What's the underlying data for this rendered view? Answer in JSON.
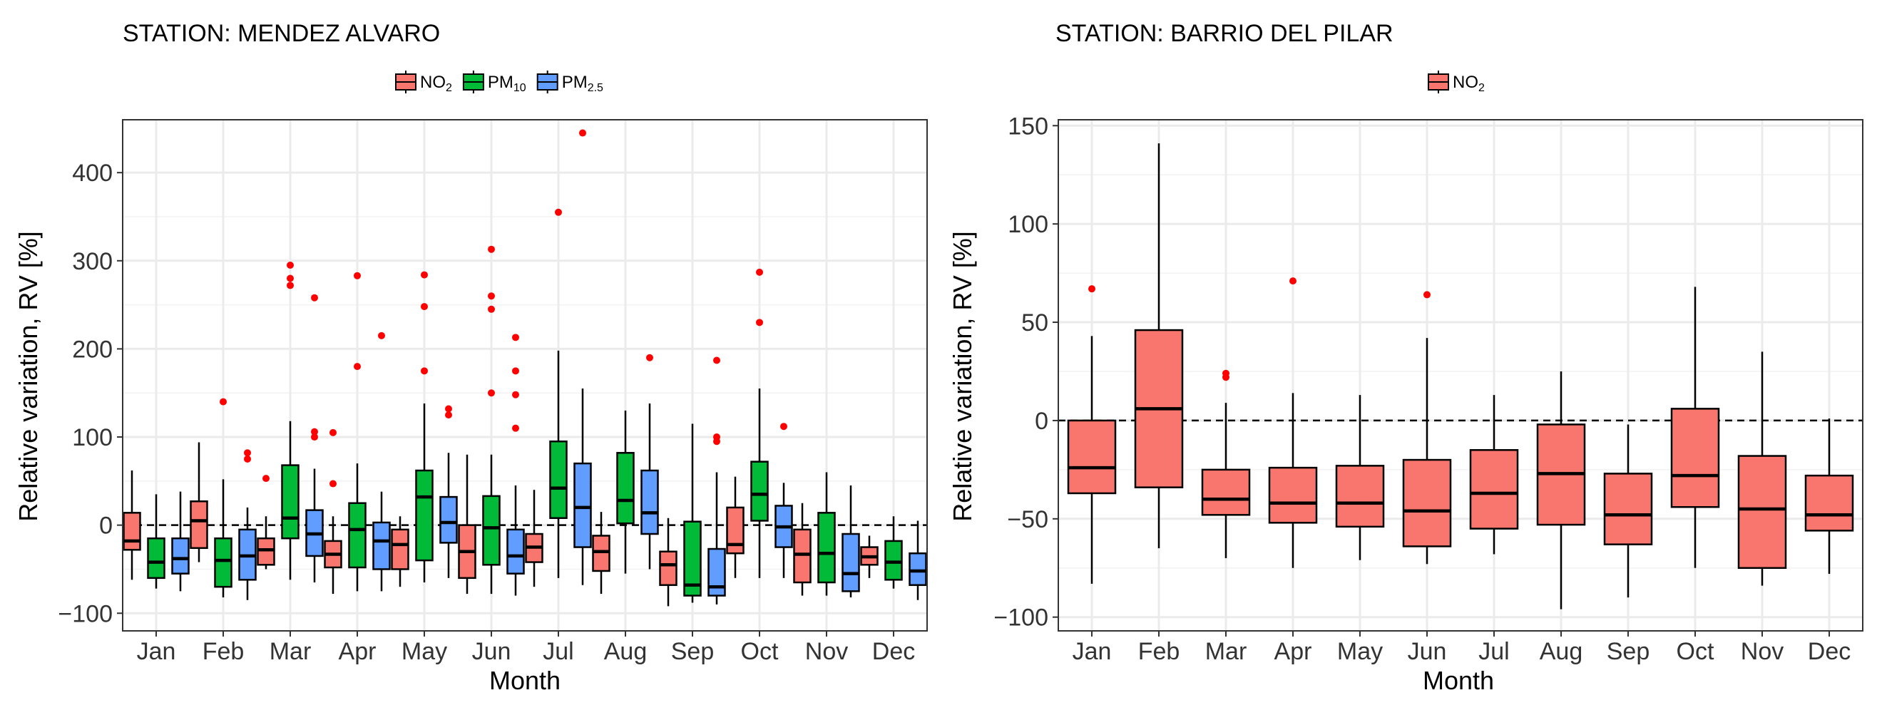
{
  "chart_data": [
    {
      "type": "boxplot",
      "title": "STATION: MENDEZ ALVARO",
      "xlabel": "Month",
      "ylabel": "Relative variation, RV [%]",
      "ylim": [
        -120,
        460
      ],
      "yticks": [
        -100,
        0,
        100,
        200,
        300,
        400
      ],
      "ytick_labels": [
        "−100",
        "0",
        "100",
        "200",
        "300",
        "400"
      ],
      "reference_line": 0,
      "categories": [
        "Jan",
        "Feb",
        "Mar",
        "Apr",
        "May",
        "Jun",
        "Jul",
        "Aug",
        "Sep",
        "Oct",
        "Nov",
        "Dec"
      ],
      "legend": {
        "position": "top",
        "entries": [
          {
            "base": "NO",
            "sub": "2"
          },
          {
            "base": "PM",
            "sub": "10"
          },
          {
            "base": "PM",
            "sub": "2.5"
          }
        ]
      },
      "series": [
        {
          "name": "NO2",
          "color": "#F8766D",
          "boxes": [
            {
              "min": -62,
              "q1": -28,
              "median": -18,
              "q3": 14,
              "max": 62,
              "outliers": []
            },
            {
              "min": -42,
              "q1": -26,
              "median": 5,
              "q3": 27,
              "max": 94,
              "outliers": []
            },
            {
              "min": -50,
              "q1": -45,
              "median": -28,
              "q3": -15,
              "max": 10,
              "outliers": [
                53
              ]
            },
            {
              "min": -78,
              "q1": -48,
              "median": -33,
              "q3": -18,
              "max": 10,
              "outliers": [
                47,
                105
              ]
            },
            {
              "min": -70,
              "q1": -50,
              "median": -22,
              "q3": -5,
              "max": 10,
              "outliers": []
            },
            {
              "min": -78,
              "q1": -60,
              "median": -30,
              "q3": 0,
              "max": 80,
              "outliers": []
            },
            {
              "min": -70,
              "q1": -42,
              "median": -25,
              "q3": -10,
              "max": 40,
              "outliers": []
            },
            {
              "min": -78,
              "q1": -52,
              "median": -30,
              "q3": -12,
              "max": 15,
              "outliers": []
            },
            {
              "min": -92,
              "q1": -68,
              "median": -45,
              "q3": -30,
              "max": 8,
              "outliers": []
            },
            {
              "min": -60,
              "q1": -32,
              "median": -22,
              "q3": 20,
              "max": 55,
              "outliers": []
            },
            {
              "min": -80,
              "q1": -65,
              "median": -33,
              "q3": -5,
              "max": 25,
              "outliers": []
            },
            {
              "min": -60,
              "q1": -45,
              "median": -36,
              "q3": -25,
              "max": -12,
              "outliers": []
            }
          ]
        },
        {
          "name": "PM10",
          "color": "#00BA38",
          "boxes": [
            {
              "min": -72,
              "q1": -60,
              "median": -42,
              "q3": -15,
              "max": 35,
              "outliers": []
            },
            {
              "min": -82,
              "q1": -70,
              "median": -40,
              "q3": -15,
              "max": 52,
              "outliers": [
                140
              ]
            },
            {
              "min": -62,
              "q1": -15,
              "median": 8,
              "q3": 68,
              "max": 118,
              "outliers": [
                272,
                280,
                295
              ]
            },
            {
              "min": -75,
              "q1": -48,
              "median": -5,
              "q3": 25,
              "max": 70,
              "outliers": [
                180,
                283
              ]
            },
            {
              "min": -65,
              "q1": -40,
              "median": 32,
              "q3": 62,
              "max": 138,
              "outliers": [
                175,
                248,
                284
              ]
            },
            {
              "min": -78,
              "q1": -45,
              "median": -3,
              "q3": 33,
              "max": 80,
              "outliers": [
                150,
                245,
                260,
                313
              ]
            },
            {
              "min": -60,
              "q1": 8,
              "median": 42,
              "q3": 95,
              "max": 198,
              "outliers": [
                355
              ]
            },
            {
              "min": -55,
              "q1": 2,
              "median": 28,
              "q3": 82,
              "max": 130,
              "outliers": []
            },
            {
              "min": -88,
              "q1": -80,
              "median": -68,
              "q3": 4,
              "max": 115,
              "outliers": []
            },
            {
              "min": -60,
              "q1": 5,
              "median": 35,
              "q3": 72,
              "max": 155,
              "outliers": [
                230,
                287
              ]
            },
            {
              "min": -80,
              "q1": -65,
              "median": -32,
              "q3": 14,
              "max": 60,
              "outliers": []
            },
            {
              "min": -72,
              "q1": -62,
              "median": -42,
              "q3": -18,
              "max": 10,
              "outliers": []
            }
          ]
        },
        {
          "name": "PM2.5",
          "color": "#619CFF",
          "boxes": [
            {
              "min": -75,
              "q1": -55,
              "median": -38,
              "q3": -15,
              "max": 38,
              "outliers": []
            },
            {
              "min": -85,
              "q1": -62,
              "median": -35,
              "q3": -5,
              "max": 20,
              "outliers": [
                75,
                82
              ]
            },
            {
              "min": -65,
              "q1": -35,
              "median": -10,
              "q3": 17,
              "max": 64,
              "outliers": [
                100,
                106,
                258
              ]
            },
            {
              "min": -75,
              "q1": -50,
              "median": -18,
              "q3": 3,
              "max": 38,
              "outliers": [
                215
              ]
            },
            {
              "min": -60,
              "q1": -20,
              "median": 3,
              "q3": 32,
              "max": 82,
              "outliers": [
                125,
                132
              ]
            },
            {
              "min": -80,
              "q1": -55,
              "median": -35,
              "q3": -5,
              "max": 45,
              "outliers": [
                110,
                148,
                175,
                213
              ]
            },
            {
              "min": -68,
              "q1": -25,
              "median": 20,
              "q3": 70,
              "max": 155,
              "outliers": [
                445
              ]
            },
            {
              "min": -50,
              "q1": -10,
              "median": 14,
              "q3": 62,
              "max": 138,
              "outliers": [
                190
              ]
            },
            {
              "min": -90,
              "q1": -80,
              "median": -70,
              "q3": -27,
              "max": 60,
              "outliers": [
                95,
                100,
                187
              ]
            },
            {
              "min": -60,
              "q1": -25,
              "median": -2,
              "q3": 22,
              "max": 48,
              "outliers": [
                112
              ]
            },
            {
              "min": -82,
              "q1": -75,
              "median": -55,
              "q3": -10,
              "max": 45,
              "outliers": []
            },
            {
              "min": -85,
              "q1": -68,
              "median": -52,
              "q3": -32,
              "max": 5,
              "outliers": []
            }
          ]
        }
      ]
    },
    {
      "type": "boxplot",
      "title": "STATION: BARRIO DEL PILAR",
      "xlabel": "Month",
      "ylabel": "Relative variation, RV [%]",
      "ylim": [
        -107,
        153
      ],
      "yticks": [
        -100,
        -50,
        0,
        50,
        100,
        150
      ],
      "ytick_labels": [
        "−100",
        "−50",
        "0",
        "50",
        "100",
        "150"
      ],
      "reference_line": 0,
      "categories": [
        "Jan",
        "Feb",
        "Mar",
        "Apr",
        "May",
        "Jun",
        "Jul",
        "Aug",
        "Sep",
        "Oct",
        "Nov",
        "Dec"
      ],
      "legend": {
        "position": "top",
        "entries": [
          {
            "base": "NO",
            "sub": "2"
          }
        ]
      },
      "series": [
        {
          "name": "NO2",
          "color": "#F8766D",
          "boxes": [
            {
              "min": -83,
              "q1": -37,
              "median": -24,
              "q3": 0,
              "max": 43,
              "outliers": [
                67
              ]
            },
            {
              "min": -65,
              "q1": -34,
              "median": 6,
              "q3": 46,
              "max": 141,
              "outliers": []
            },
            {
              "min": -70,
              "q1": -48,
              "median": -40,
              "q3": -25,
              "max": 9,
              "outliers": [
                22,
                24
              ]
            },
            {
              "min": -75,
              "q1": -52,
              "median": -42,
              "q3": -24,
              "max": 14,
              "outliers": [
                71
              ]
            },
            {
              "min": -71,
              "q1": -54,
              "median": -42,
              "q3": -23,
              "max": 13,
              "outliers": []
            },
            {
              "min": -73,
              "q1": -64,
              "median": -46,
              "q3": -20,
              "max": 42,
              "outliers": [
                64
              ]
            },
            {
              "min": -68,
              "q1": -55,
              "median": -37,
              "q3": -15,
              "max": 13,
              "outliers": []
            },
            {
              "min": -96,
              "q1": -53,
              "median": -27,
              "q3": -2,
              "max": 25,
              "outliers": []
            },
            {
              "min": -90,
              "q1": -63,
              "median": -48,
              "q3": -27,
              "max": -2,
              "outliers": []
            },
            {
              "min": -75,
              "q1": -44,
              "median": -28,
              "q3": 6,
              "max": 68,
              "outliers": []
            },
            {
              "min": -84,
              "q1": -75,
              "median": -45,
              "q3": -18,
              "max": 35,
              "outliers": []
            },
            {
              "min": -78,
              "q1": -56,
              "median": -48,
              "q3": -28,
              "max": 1,
              "outliers": []
            }
          ]
        }
      ]
    }
  ]
}
